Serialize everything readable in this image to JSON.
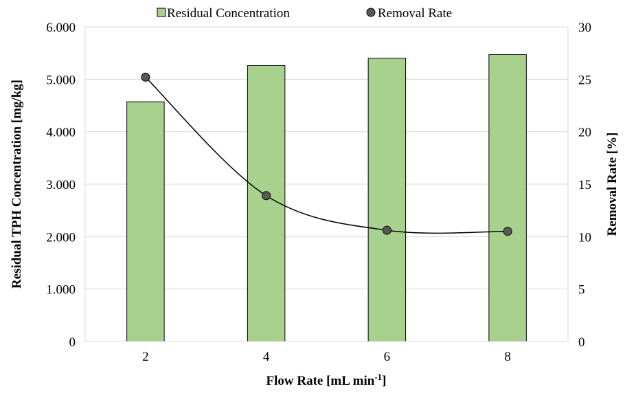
{
  "chart_data": {
    "type": "bar",
    "categories": [
      "2",
      "4",
      "6",
      "8"
    ],
    "series": [
      {
        "name": "Residual Concentration",
        "type": "bar",
        "axis": "left",
        "values": [
          4.57,
          5.26,
          5.4,
          5.47
        ]
      },
      {
        "name": "Removal Rate",
        "type": "line",
        "axis": "right",
        "smooth": true,
        "values": [
          25.2,
          13.9,
          10.6,
          10.5
        ]
      }
    ],
    "xlabel_main": "Flow Rate [mL min",
    "xlabel_sup": "-1",
    "xlabel_end": "]",
    "ylabel": "Residual TPH Concentration [mg/kg]",
    "y2label": "Removal Rate [%]",
    "ylim": [
      0,
      6
    ],
    "y2lim": [
      0,
      30
    ],
    "yticks": [
      "0",
      "1.000",
      "2.000",
      "3.000",
      "4.000",
      "5.000",
      "6.000"
    ],
    "y2ticks": [
      "0",
      "5",
      "10",
      "15",
      "20",
      "25",
      "30"
    ],
    "grid": "horizontal",
    "legend_position": "top",
    "colors": {
      "bar_fill": "#a9d18e",
      "bar_stroke": "#000000",
      "marker_fill": "#595959",
      "line": "#000000",
      "grid": "#d9d9d9"
    }
  }
}
